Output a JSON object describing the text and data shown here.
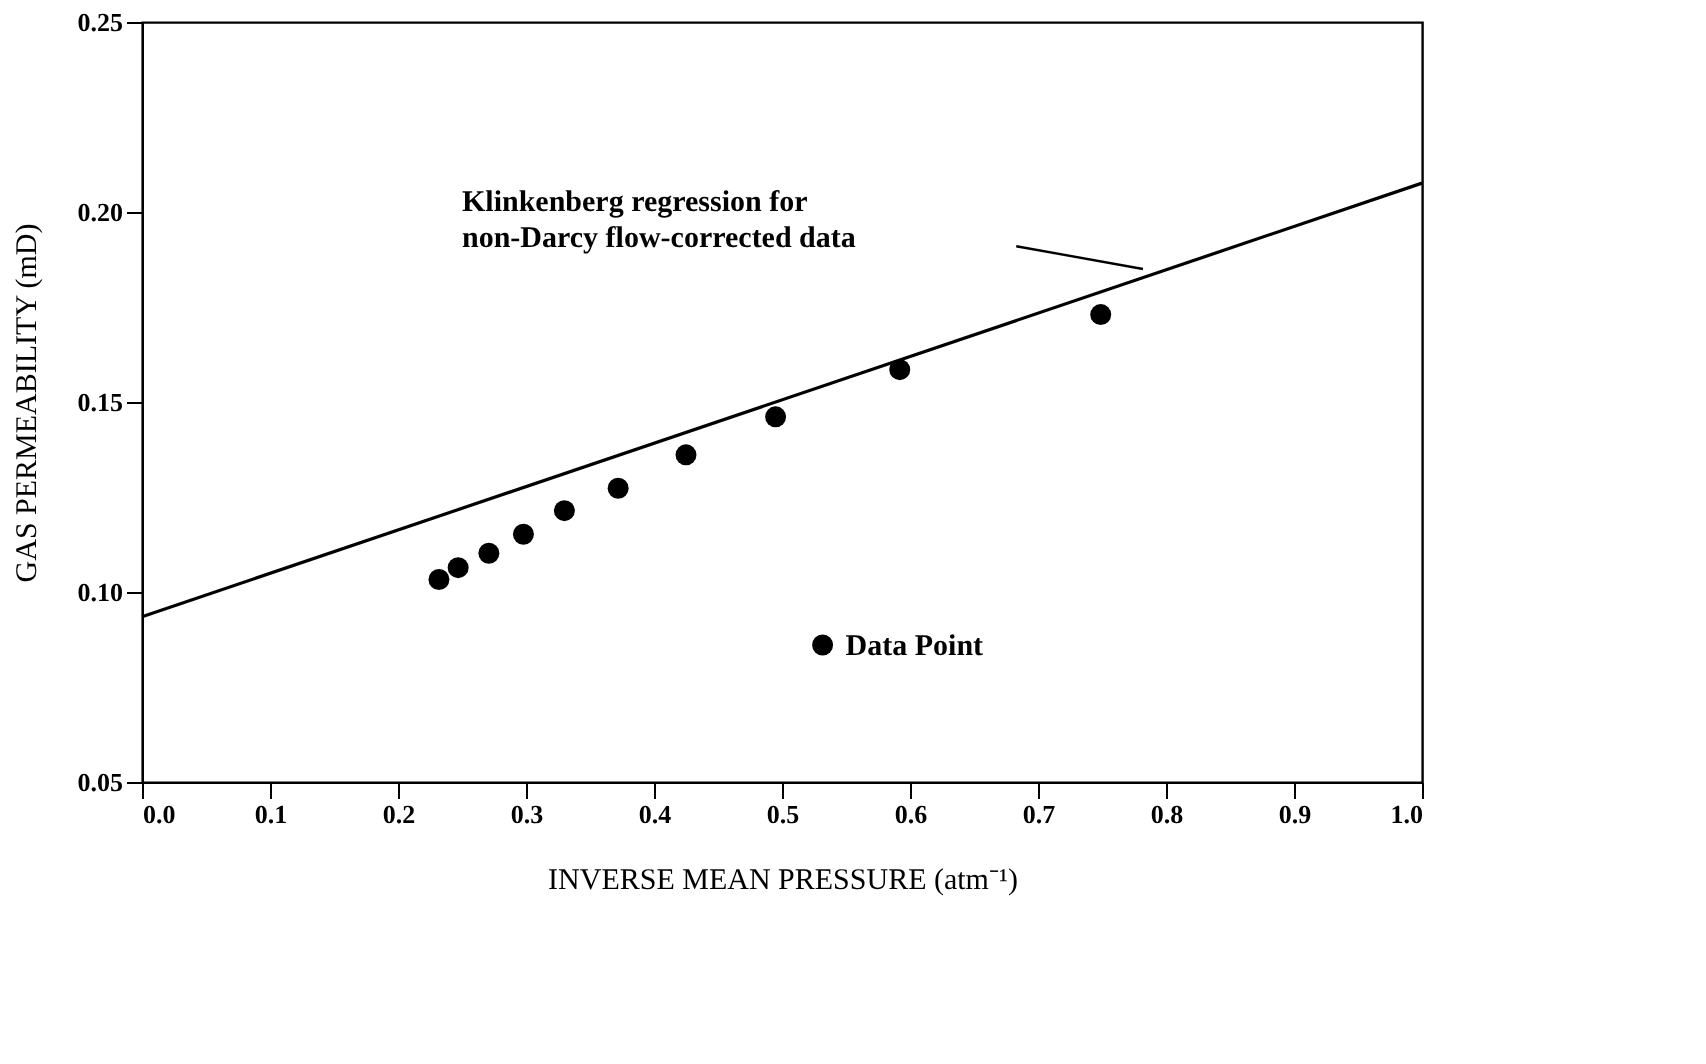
{
  "chart_data": {
    "type": "scatter",
    "xlabel": "INVERSE MEAN PRESSURE (atm⁻¹)",
    "ylabel": "GAS PERMEABILITY (mD)",
    "xlim": [
      0,
      1
    ],
    "ylim": [
      0.05,
      0.25
    ],
    "xticks": [
      {
        "value": 0,
        "label": "0.0"
      },
      0.1,
      0.2,
      0.3,
      0.4,
      0.5,
      0.6,
      0.7,
      0.8,
      0.9,
      {
        "value": 1,
        "label": "1.0"
      }
    ],
    "yticks": [
      0.05,
      {
        "value": 0.1,
        "label": "0.10"
      },
      0.15,
      {
        "value": 0.2,
        "label": "0.20"
      },
      0.25
    ],
    "series": [
      {
        "name": "Data Point",
        "color": "#000000",
        "marker": "circle",
        "x": [
          0.232,
          0.247,
          0.271,
          0.298,
          0.33,
          0.372,
          0.425,
          0.495,
          0.592,
          0.749
        ],
        "values": [
          0.1033,
          0.1064,
          0.1102,
          0.1152,
          0.1214,
          0.1273,
          0.1361,
          0.1461,
          0.1585,
          0.173
        ]
      },
      {
        "type": "line",
        "color": "#000000",
        "x": [
          0,
          1
        ],
        "values": [
          0.0935,
          0.2076
        ]
      }
    ],
    "annotations": [
      "Klinkenberg regression for\nnon-Darcy flow-corrected data"
    ],
    "legend": "bottom",
    "grid": false
  }
}
